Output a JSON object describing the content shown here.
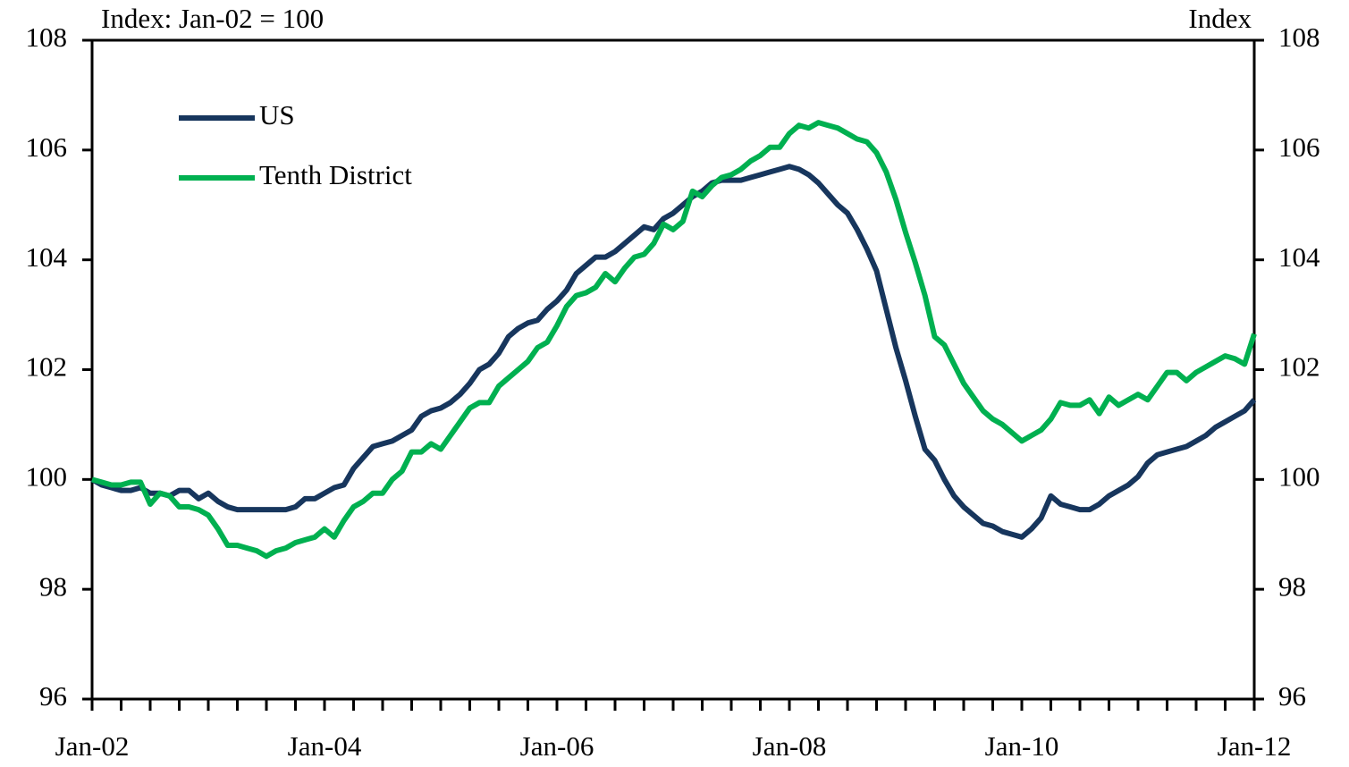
{
  "chart_data": {
    "type": "line",
    "y_axis_label": "Index: Jan-02 = 100",
    "y2_axis_label": "Index",
    "categories": [
      "Jan-02",
      null,
      null,
      null,
      null,
      null,
      null,
      null,
      null,
      null,
      null,
      null,
      null,
      null,
      null,
      null,
      null,
      null,
      null,
      null,
      null,
      null,
      null,
      null,
      "Jan-04",
      null,
      null,
      null,
      null,
      null,
      null,
      null,
      null,
      null,
      null,
      null,
      null,
      null,
      null,
      null,
      null,
      null,
      null,
      null,
      null,
      null,
      null,
      null,
      "Jan-06",
      null,
      null,
      null,
      null,
      null,
      null,
      null,
      null,
      null,
      null,
      null,
      null,
      null,
      null,
      null,
      null,
      null,
      null,
      null,
      null,
      null,
      null,
      null,
      "Jan-08",
      null,
      null,
      null,
      null,
      null,
      null,
      null,
      null,
      null,
      null,
      null,
      null,
      null,
      null,
      null,
      null,
      null,
      null,
      null,
      null,
      null,
      null,
      null,
      "Jan-10",
      null,
      null,
      null,
      null,
      null,
      null,
      null,
      null,
      null,
      null,
      null,
      null,
      null,
      null,
      null,
      null,
      null,
      null,
      null,
      null,
      null,
      null,
      null,
      "Jan-12"
    ],
    "series": [
      {
        "name": "US",
        "color": "#17365d",
        "values": [
          100,
          99.9,
          99.85,
          99.8,
          99.8,
          99.85,
          99.75,
          99.75,
          99.7,
          99.8,
          99.8,
          99.65,
          99.75,
          99.6,
          99.5,
          99.45,
          99.45,
          99.45,
          99.45,
          99.45,
          99.45,
          99.5,
          99.65,
          99.65,
          99.75,
          99.85,
          99.9,
          100.2,
          100.4,
          100.6,
          100.65,
          100.7,
          100.8,
          100.9,
          101.15,
          101.25,
          101.3,
          101.4,
          101.55,
          101.75,
          102.0,
          102.1,
          102.3,
          102.6,
          102.75,
          102.85,
          102.9,
          103.1,
          103.25,
          103.45,
          103.75,
          103.9,
          104.05,
          104.05,
          104.15,
          104.3,
          104.45,
          104.6,
          104.55,
          104.75,
          104.85,
          105.0,
          105.15,
          105.25,
          105.4,
          105.45,
          105.45,
          105.45,
          105.5,
          105.55,
          105.6,
          105.65,
          105.7,
          105.65,
          105.55,
          105.4,
          105.2,
          105.0,
          104.85,
          104.55,
          104.2,
          103.8,
          103.1,
          102.4,
          101.8,
          101.15,
          100.55,
          100.35,
          100.0,
          99.7,
          99.5,
          99.35,
          99.2,
          99.15,
          99.05,
          99.0,
          98.95,
          99.1,
          99.3,
          99.7,
          99.55,
          99.5,
          99.45,
          99.45,
          99.55,
          99.7,
          99.8,
          99.9,
          100.05,
          100.3,
          100.45,
          100.5,
          100.55,
          100.6,
          100.7,
          100.8,
          100.95,
          101.05,
          101.15,
          101.25,
          101.45
        ]
      },
      {
        "name": "Tenth District",
        "color": "#00b050",
        "values": [
          100,
          99.95,
          99.9,
          99.9,
          99.95,
          99.95,
          99.55,
          99.75,
          99.7,
          99.5,
          99.5,
          99.45,
          99.35,
          99.1,
          98.8,
          98.8,
          98.75,
          98.7,
          98.6,
          98.7,
          98.75,
          98.85,
          98.9,
          98.95,
          99.1,
          98.95,
          99.25,
          99.5,
          99.6,
          99.75,
          99.75,
          100.0,
          100.15,
          100.5,
          100.5,
          100.65,
          100.55,
          100.8,
          101.05,
          101.3,
          101.4,
          101.4,
          101.7,
          101.85,
          102.0,
          102.15,
          102.4,
          102.5,
          102.8,
          103.15,
          103.35,
          103.4,
          103.5,
          103.75,
          103.6,
          103.85,
          104.05,
          104.1,
          104.3,
          104.65,
          104.55,
          104.7,
          105.25,
          105.15,
          105.35,
          105.5,
          105.55,
          105.65,
          105.8,
          105.9,
          106.05,
          106.05,
          106.3,
          106.45,
          106.4,
          106.5,
          106.45,
          106.4,
          106.3,
          106.2,
          106.15,
          105.95,
          105.6,
          105.1,
          104.5,
          103.95,
          103.35,
          102.6,
          102.45,
          102.1,
          101.75,
          101.5,
          101.25,
          101.1,
          101.0,
          100.85,
          100.7,
          100.8,
          100.9,
          101.1,
          101.4,
          101.35,
          101.35,
          101.45,
          101.2,
          101.5,
          101.35,
          101.45,
          101.55,
          101.45,
          101.7,
          101.95,
          101.95,
          101.8,
          101.95,
          102.05,
          102.15,
          102.25,
          102.2,
          102.1,
          102.65
        ]
      }
    ],
    "ylim": [
      96,
      108
    ],
    "yticks": [
      96,
      98,
      100,
      102,
      104,
      106,
      108
    ],
    "y2lim": [
      96,
      108
    ],
    "y2ticks": [
      96,
      98,
      100,
      102,
      104,
      106,
      108
    ],
    "legend": "upper left",
    "grid": false
  }
}
